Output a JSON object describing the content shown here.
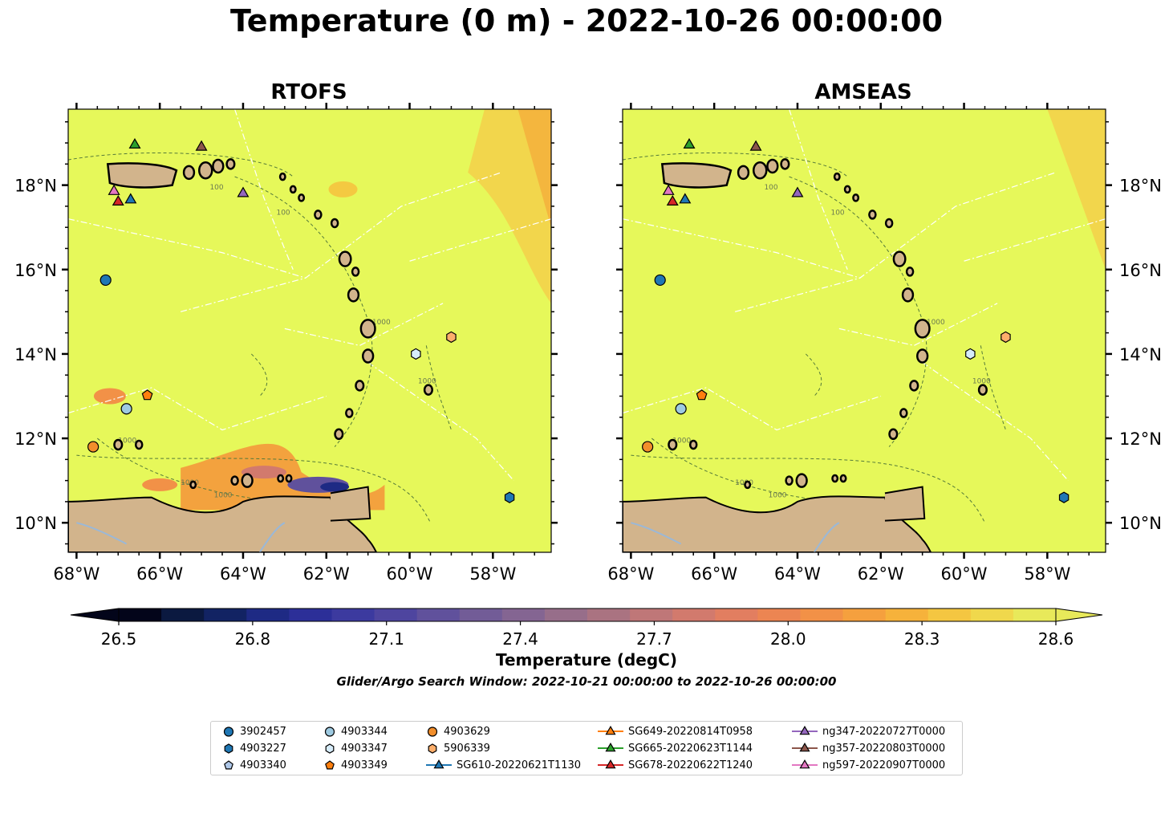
{
  "title": "Temperature (0 m) - 2022-10-26 00:00:00",
  "panels": [
    {
      "title": "RTOFS"
    },
    {
      "title": "AMSEAS"
    }
  ],
  "colorbar": {
    "label": "Temperature (degC)",
    "ticks": [
      "26.5",
      "26.8",
      "27.1",
      "27.4",
      "27.7",
      "28.0",
      "28.3",
      "28.6"
    ],
    "colors": [
      "#03051a",
      "#0b1940",
      "#122363",
      "#1e2a84",
      "#2c2f98",
      "#3c3a9f",
      "#4e459f",
      "#60519c",
      "#725c97",
      "#846592",
      "#976e8a",
      "#aa7381",
      "#bf7778",
      "#d27a6d",
      "#e27e60",
      "#ec8552",
      "#f29147",
      "#f5a03e",
      "#f6b23b",
      "#f4c641",
      "#f0d84c",
      "#e8e95a"
    ]
  },
  "note": "Glider/Argo Search Window: 2022-10-21 00:00:00 to 2022-10-26 00:00:00",
  "axes": {
    "x_ticks": [
      "68°W",
      "66°W",
      "64°W",
      "62°W",
      "60°W",
      "58°W"
    ],
    "y_ticks": [
      "18°N",
      "16°N",
      "14°N",
      "12°N",
      "10°N"
    ]
  },
  "colors": {
    "sea": "#e6f85a",
    "land": "#d2b48c",
    "river": "#9ab8d8"
  },
  "chart_data": {
    "type": "map",
    "lon_range": [
      -68.2,
      -56.6
    ],
    "lat_range": [
      9.3,
      19.8
    ],
    "markers": [
      {
        "id": "3902457",
        "lon": -67.3,
        "lat": 15.75,
        "shape": "circle",
        "color": "#1f77b4"
      },
      {
        "id": "4903227",
        "lon": -57.6,
        "lat": 10.6,
        "shape": "hexagon",
        "color": "#1f77b4"
      },
      {
        "id": "4903340",
        "lon": -59.9,
        "lat": 14.0,
        "shape": "pentagon",
        "color": "#aec7e8",
        "hidden": true
      },
      {
        "id": "4903344",
        "lon": -66.8,
        "lat": 12.7,
        "shape": "circle",
        "color": "#9ecae1"
      },
      {
        "id": "4903347",
        "lon": -59.85,
        "lat": 14.0,
        "shape": "hexagon",
        "color": "#d6ecfa"
      },
      {
        "id": "4903349",
        "lon": -66.3,
        "lat": 13.02,
        "shape": "pentagon",
        "color": "#ff7f0e"
      },
      {
        "id": "4903629",
        "lon": -67.6,
        "lat": 11.8,
        "shape": "circle",
        "color": "#f28e2b"
      },
      {
        "id": "5906339",
        "lon": -59.0,
        "lat": 14.4,
        "shape": "hexagon",
        "color": "#fdae6b"
      },
      {
        "id": "SG610-20220621T1130",
        "lon": -66.7,
        "lat": 17.65,
        "shape": "triangle",
        "color": "#1f77b4"
      },
      {
        "id": "SG649-20220814T0958",
        "lon": -66.9,
        "lat": 17.6,
        "shape": "triangle",
        "color": "#ff7f0e",
        "hidden": true
      },
      {
        "id": "SG665-20220623T1144",
        "lon": -66.6,
        "lat": 18.95,
        "shape": "triangle",
        "color": "#2ca02c"
      },
      {
        "id": "SG678-20220622T1240",
        "lon": -67.0,
        "lat": 17.6,
        "shape": "triangle",
        "color": "#d62728"
      },
      {
        "id": "ng347-20220727T0000",
        "lon": -64.0,
        "lat": 17.8,
        "shape": "triangle",
        "color": "#9467bd"
      },
      {
        "id": "ng357-20220803T0000",
        "lon": -65.0,
        "lat": 18.9,
        "shape": "triangle",
        "color": "#8c564b"
      },
      {
        "id": "ng597-20220907T0000",
        "lon": -67.1,
        "lat": 17.85,
        "shape": "triangle",
        "color": "#e377c2"
      }
    ],
    "legend_columns": [
      [
        "3902457",
        "4903227",
        "4903340"
      ],
      [
        "4903344",
        "4903347",
        "4903349"
      ],
      [
        "4903629",
        "5906339",
        "SG610-20220621T1130"
      ],
      [
        "SG649-20220814T0958",
        "SG665-20220623T1144",
        "SG678-20220622T1240"
      ],
      [
        "ng347-20220727T0000",
        "ng357-20220803T0000",
        "ng597-20220907T0000"
      ]
    ],
    "contour_labels": [
      "100",
      "1000"
    ]
  }
}
